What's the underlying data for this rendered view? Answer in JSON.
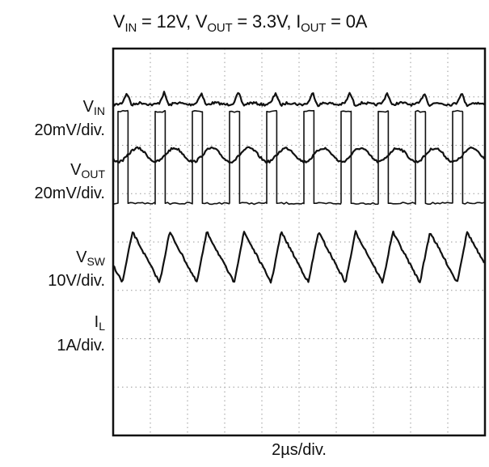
{
  "chart_data": {
    "type": "line",
    "title_parts": [
      {
        "base": "V",
        "sub": "IN",
        "rest": " = 12V, "
      },
      {
        "base": "V",
        "sub": "OUT",
        "rest": " = 3.3V, "
      },
      {
        "base": "I",
        "sub": "OUT",
        "rest": " = 0A"
      }
    ],
    "xlabel": "2µs/div.",
    "grid": true,
    "divisions": {
      "x": 10,
      "y": 8
    },
    "period_div": 1.0,
    "channels": [
      {
        "sig": "V",
        "sub": "IN",
        "scale": "20mV/div.",
        "baseline_div": 5.0,
        "ripple_div": 0.4,
        "shape": "vin"
      },
      {
        "sig": "V",
        "sub": "OUT",
        "scale": "20mV/div.",
        "baseline_div": 6.2,
        "ripple_div": 0.28,
        "shape": "vout"
      },
      {
        "sig": "V",
        "sub": "SW",
        "scale": "10V/div.",
        "baseline_div": 7.2,
        "ripple_div": 1.9,
        "shape": "vsw",
        "duty": 0.27
      },
      {
        "sig": "I",
        "sub": "L",
        "scale": "1A/div.",
        "baseline_div": 8.0,
        "ripple_div": 1.05,
        "shape": "il",
        "duty": 0.27
      }
    ]
  }
}
